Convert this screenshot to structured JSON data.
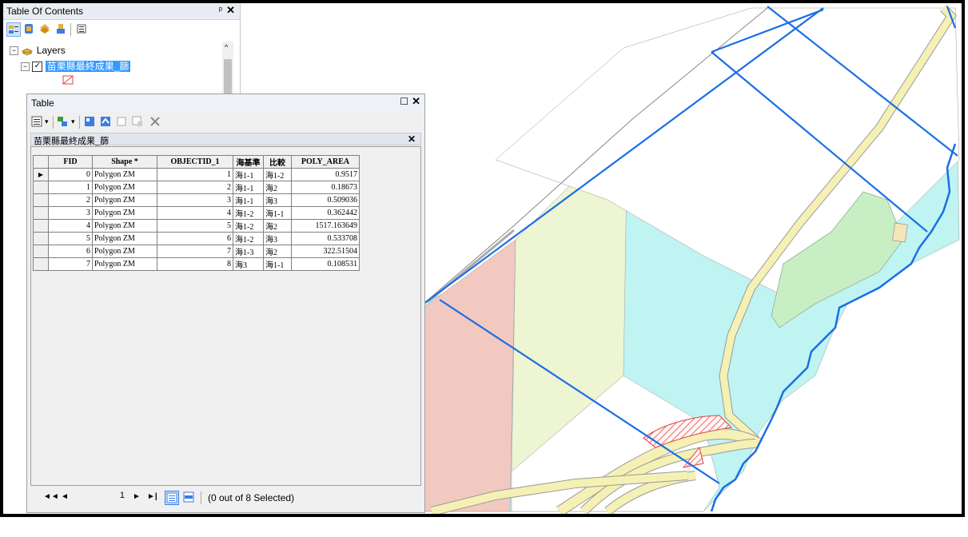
{
  "toc": {
    "title": "Table Of Contents",
    "pin": "ᵖ",
    "close": "✕",
    "root_label": "Layers",
    "layer_name": "苗栗縣最終成果_篩",
    "tools": [
      "list-by-drawing-order-icon",
      "list-by-source-icon",
      "list-by-visibility-icon",
      "list-by-selection-icon",
      "options-icon"
    ]
  },
  "table_window": {
    "title": "Table",
    "maximize": "☐",
    "close": "✕",
    "tab_title": "苗栗縣最終成果_篩",
    "tab_close": "✕",
    "columns": [
      "FID",
      "Shape *",
      "OBJECTID_1",
      "海基準",
      "比較",
      "POLY_AREA"
    ],
    "rows": [
      [
        "0",
        "Polygon ZM",
        "1",
        "海1-1",
        "海1-2",
        "0.9517"
      ],
      [
        "1",
        "Polygon ZM",
        "2",
        "海1-1",
        "海2",
        "0.18673"
      ],
      [
        "2",
        "Polygon ZM",
        "3",
        "海1-1",
        "海3",
        "0.509036"
      ],
      [
        "3",
        "Polygon ZM",
        "4",
        "海1-2",
        "海1-1",
        "0.362442"
      ],
      [
        "4",
        "Polygon ZM",
        "5",
        "海1-2",
        "海2",
        "1517.163649"
      ],
      [
        "5",
        "Polygon ZM",
        "6",
        "海1-2",
        "海3",
        "0.533708"
      ],
      [
        "6",
        "Polygon ZM",
        "7",
        "海1-3",
        "海2",
        "322.51504"
      ],
      [
        "7",
        "Polygon ZM",
        "8",
        "海3",
        "海1-1",
        "0.108531"
      ]
    ],
    "status": {
      "first": "◄◄",
      "prev": "◄",
      "page": "1",
      "next": "►",
      "last": "►|",
      "selection": "(0 out of 8 Selected)"
    }
  },
  "colors": {
    "grid_line": "#1a6ee6",
    "road_fill": "#f5f0b4",
    "water_fill": "#bff4f2",
    "pink_fill": "#f2c9c0",
    "yellow_fill": "#eef5d2",
    "green_fill": "#c8eec4",
    "selection": "#3399ff"
  }
}
